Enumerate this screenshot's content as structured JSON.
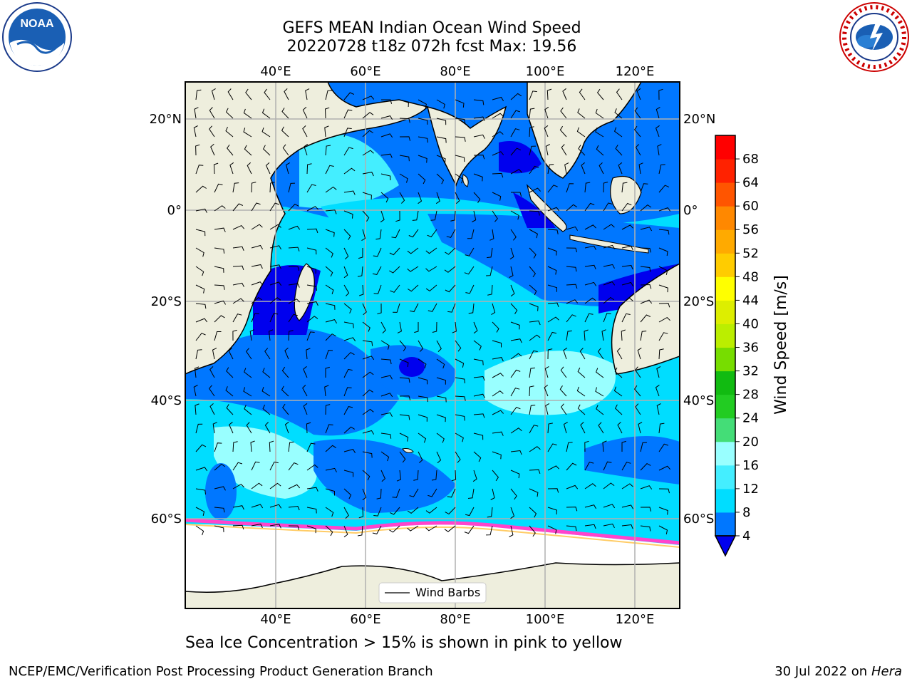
{
  "title_line1": "GEFS MEAN Indian Ocean Wind Speed",
  "title_line2": "20220728 t18z 072h fcst   Max: 19.56",
  "logos": {
    "left": "noaa-logo",
    "right": "national-weather-service-logo"
  },
  "map": {
    "lon_ticks": [
      "40°E",
      "60°E",
      "80°E",
      "100°E",
      "120°E"
    ],
    "lat_ticks_left": [
      "20°N",
      "0°",
      "20°S",
      "40°S",
      "60°S"
    ],
    "lat_ticks_right": [
      "20°N",
      "0°",
      "20°S",
      "40°S",
      "60°S"
    ],
    "legend_label": "Wind Barbs",
    "colors": {
      "land": "#eeeedd",
      "ocean_low": "#0000ee",
      "ocean_mid": "#0077ff",
      "ocean_high": "#00ddff",
      "ocean_peak": "#99ffff",
      "ice_edge": "#ff44cc"
    }
  },
  "colorbar": {
    "title": "Wind Speed [m/s]",
    "levels": [
      "4",
      "8",
      "12",
      "16",
      "20",
      "24",
      "28",
      "32",
      "36",
      "40",
      "44",
      "48",
      "52",
      "56",
      "60",
      "64",
      "68"
    ],
    "colors": [
      "#0077ff",
      "#00ddff",
      "#44eeff",
      "#99ffff",
      "#44dd77",
      "#22cc22",
      "#11bb11",
      "#77dd00",
      "#bbee00",
      "#ddee00",
      "#ffff00",
      "#ffcc00",
      "#ffaa00",
      "#ff8800",
      "#ff5500",
      "#ff2200",
      "#ff0000"
    ],
    "under_color": "#0000ee"
  },
  "caption": "Sea Ice Concentration > 15% is shown in pink to yellow",
  "footer": {
    "left": "NCEP/EMC/Verification Post Processing Product Generation Branch",
    "date": "30 Jul 2022",
    "on": "on",
    "machine": "Hera"
  }
}
